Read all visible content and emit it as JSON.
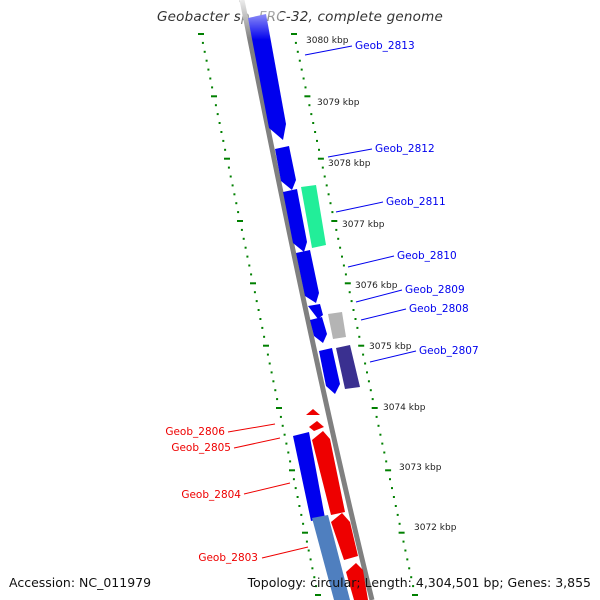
{
  "title": "Geobacter sp. FRC-32, complete genome",
  "footer": {
    "accession": "Accession: NC_011979",
    "summary": "Topology: circular; Length: 4,304,501 bp; Genes: 3,855"
  },
  "colors": {
    "plus_strand": "#0000ee",
    "minus_strand": "#ee0000",
    "ruler": "#008000",
    "backbone": "#808080"
  },
  "kbp_ticks": [
    "3080 kbp",
    "3079 kbp",
    "3078 kbp",
    "3077 kbp",
    "3076 kbp",
    "3075 kbp",
    "3074 kbp",
    "3073 kbp",
    "3072 kbp"
  ],
  "genes": [
    {
      "name": "Geob_2813",
      "strand": "plus",
      "color": "#0000ee"
    },
    {
      "name": "Geob_2812",
      "strand": "plus",
      "color": "#0000ee"
    },
    {
      "name": "Geob_2811",
      "strand": "plus",
      "color": "#22ee99"
    },
    {
      "name": "Geob_2810",
      "strand": "plus",
      "color": "#0000ee"
    },
    {
      "name": "Geob_2809",
      "strand": "plus",
      "color": "#0000ee"
    },
    {
      "name": "Geob_2808",
      "strand": "plus",
      "color": "#b4b4b4"
    },
    {
      "name": "Geob_2807",
      "strand": "plus",
      "color": "#3a3090"
    },
    {
      "name": "Geob_2806",
      "strand": "minus",
      "color": "#ee0000"
    },
    {
      "name": "Geob_2805",
      "strand": "minus",
      "color": "#ee0000"
    },
    {
      "name": "Geob_2804",
      "strand": "minus",
      "color": "#ee0000"
    },
    {
      "name": "Geob_2803",
      "strand": "minus",
      "color": "#ee0000"
    }
  ]
}
